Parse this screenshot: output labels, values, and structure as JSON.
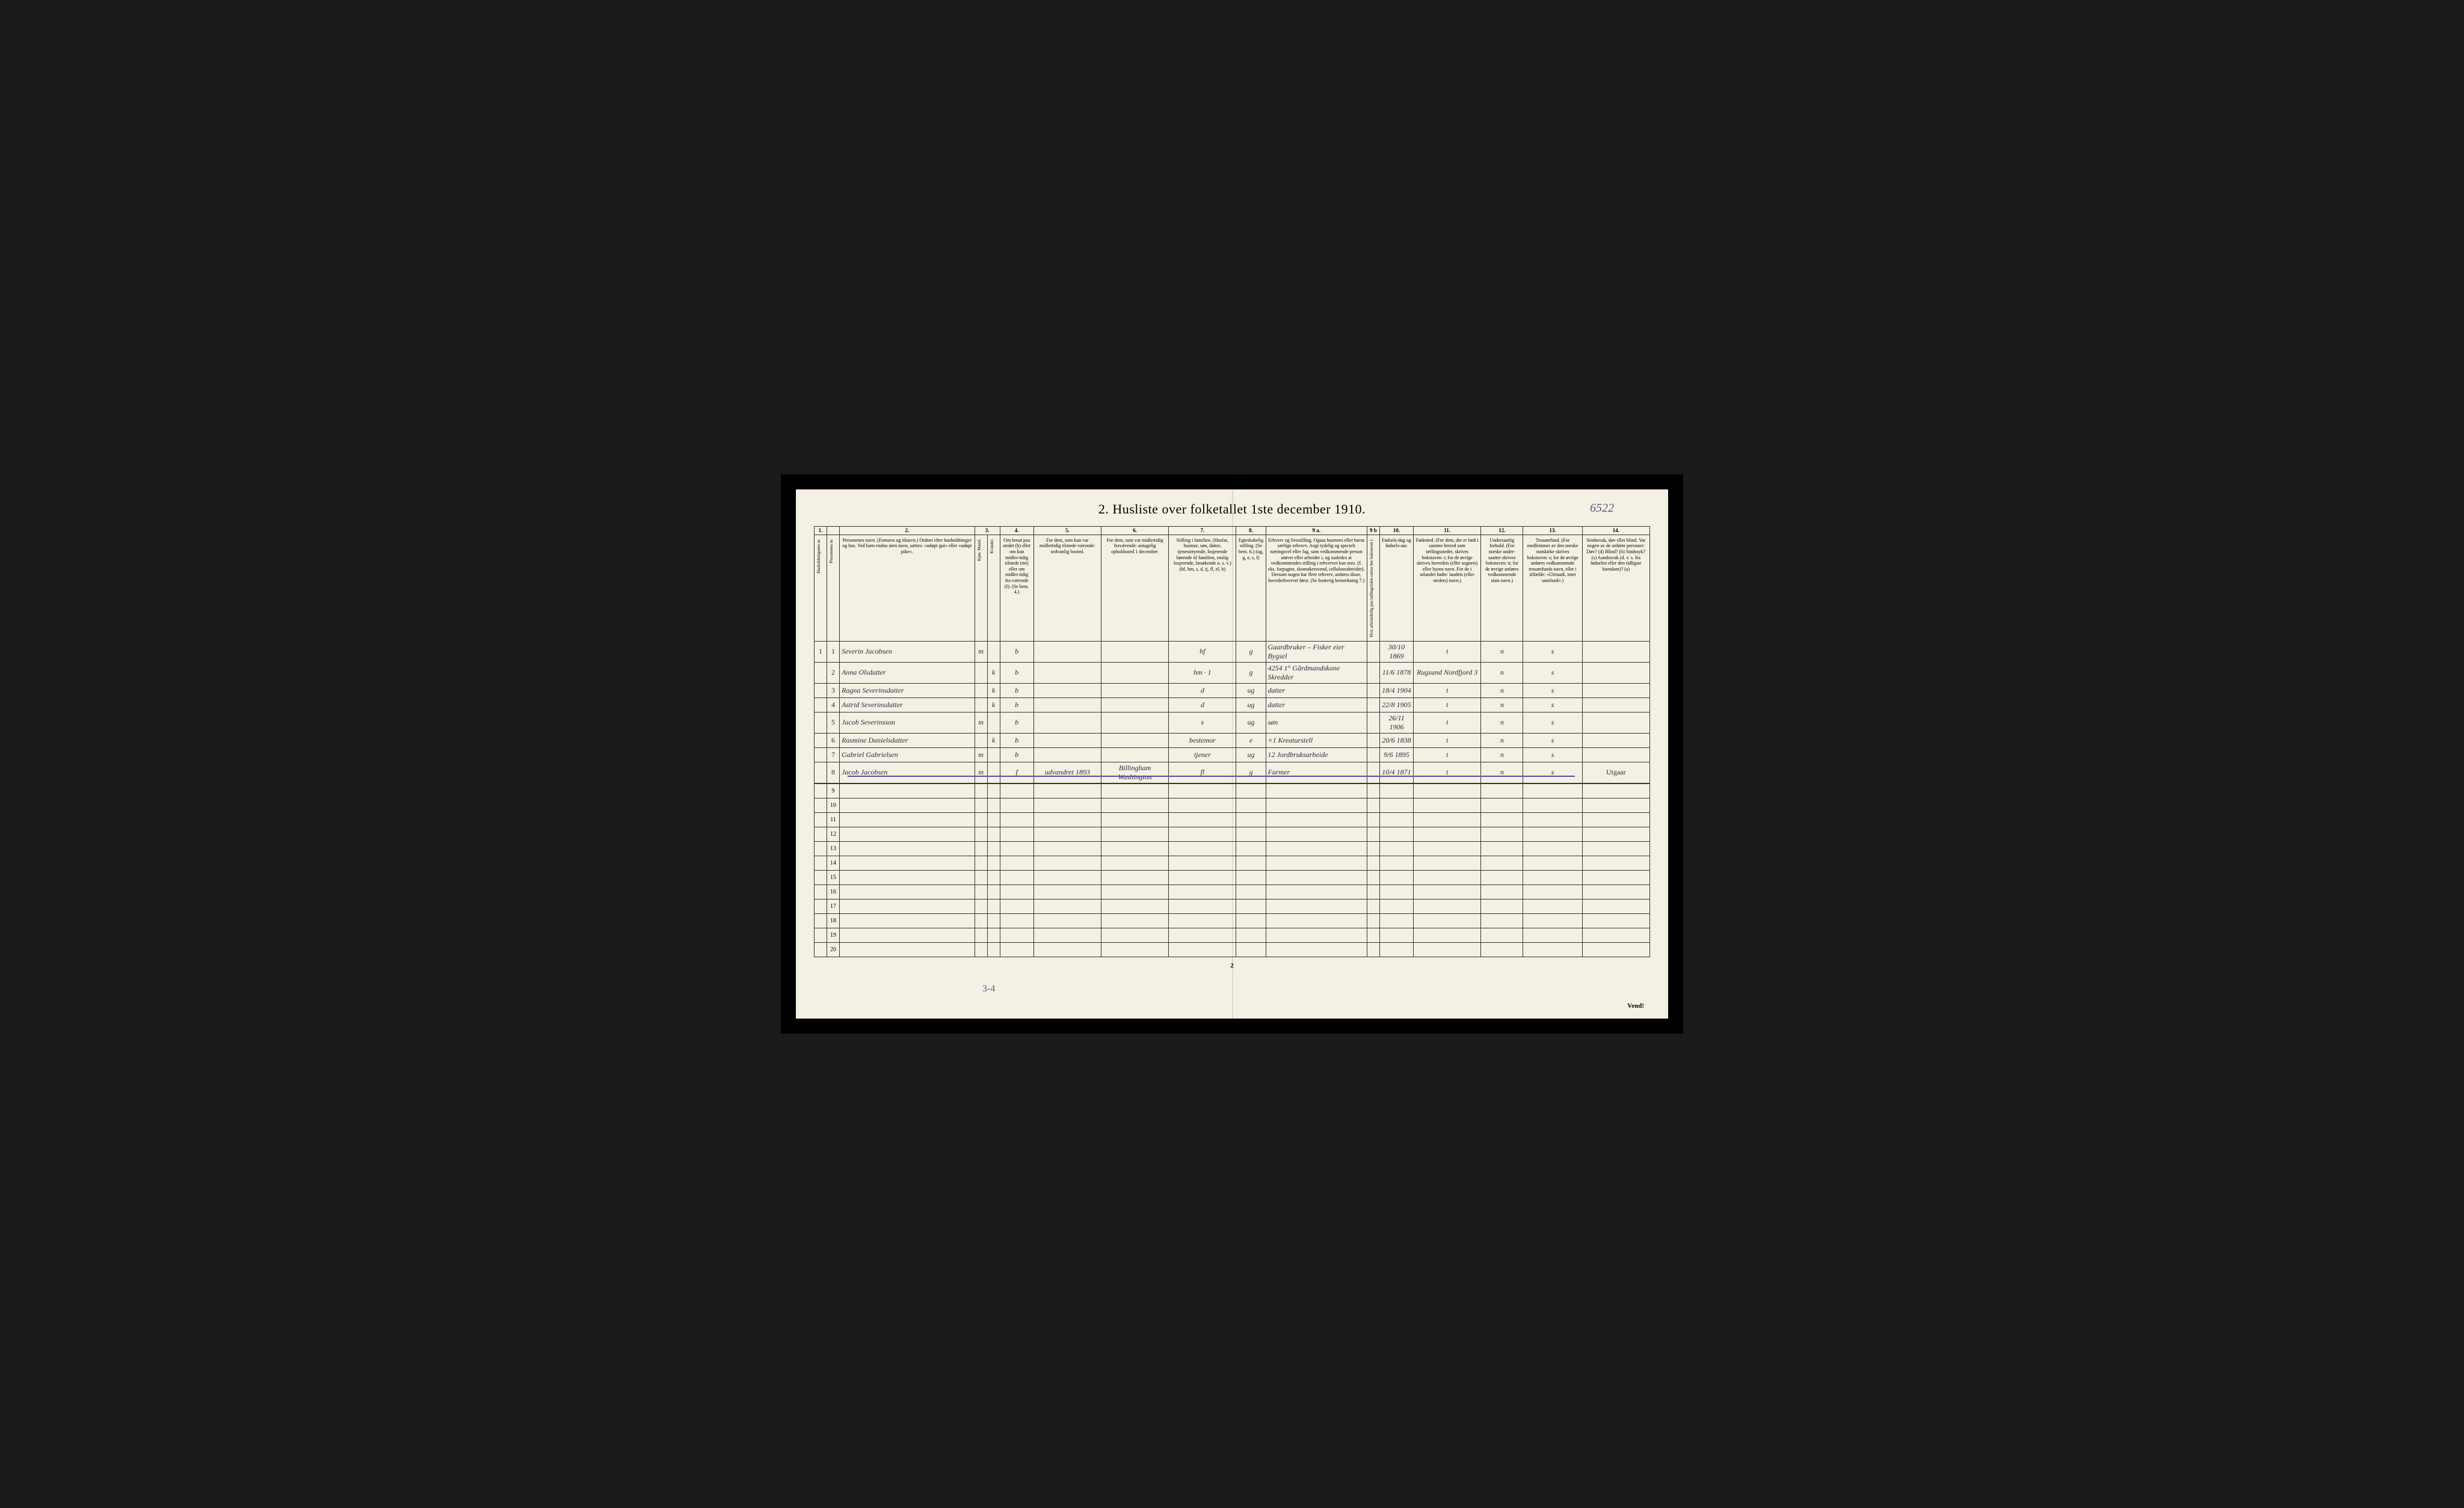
{
  "title": "2. Husliste over folketallet 1ste december 1910.",
  "title_annotation": "6522",
  "page_number_bottom": "2",
  "bottom_annotation": "3-4",
  "vend_text": "Vend!",
  "column_numbers": [
    "1.",
    "",
    "2.",
    "3.",
    "",
    "4.",
    "5.",
    "6.",
    "7.",
    "8.",
    "9 a.",
    "9 b",
    "10.",
    "11.",
    "12.",
    "13.",
    "14."
  ],
  "headers": {
    "col1": "Husholdningenes nr.",
    "col1b": "Personenes nr.",
    "col2": "Personenes navn.\n(Fornavn og tilnavn.)\nOrdnet efter husholdninger og hus.\nVed barn endnu uten navn, sættes: «udøpt gut» eller «udøpt pike».",
    "col3": "Kjøn.\nMænd.",
    "col3b": "Kvinder.",
    "col3_sub": "m. k.",
    "col4": "Om bosat paa stedet (b) eller om kun midler-tidig tilstede (mt) eller om midler-tidig fra-værende (f).\n(Se bem. 4.)",
    "col5": "For dem, som kun var midlertidig tilstede-værende:\nsedvanlig bosted.",
    "col6": "For dem, som var midlertidig fraværende:\nantagelig opholdssted 1 december.",
    "col7": "Stilling i familien.\n(Husfar, husmor, søn, datter, tjenestetyende, losjerende hørende til familien, enslig losjerende, besøkende o. s. v.)\n(hf, hm, s, d, tj, fl, el, b)",
    "col8": "Egteskabelig stilling.\n(Se bem. 6.)\n(ug, g, e, s, f)",
    "col9a": "Erhverv og livsstilling.\nOgsaa husmors eller barns særlige erhverv.\nAngi tydelig og specielt næringsvel eller fag, som vedkommende person utøver eller arbeider i, og saaledes at vedkommendes stilling i erhvervet kan sees. (f. eks. forpagter, skomakersvend, celluloseabreider). Dersom nogen har flere erhverv, anføres disse, hovederhvervet først.\n(Se forøvrig bemerkning 7.)",
    "col9b": "Hvis arbeidsledig paa tællingstiden sættes her bokstaven l.",
    "col10": "Fødsels-dag og fødsels-aar.",
    "col11": "Fødested.\n(For dem, der er født i samme herred som tællingsstedet, skrives bokstaven: t; for de øvrige skrives herredets (eller sognets) eller byens navn.\nFor de i utlandet fødte: landets (eller stedets) navn.)",
    "col12": "Undersaatlig forhold.\n(For norske under-saatter skrives bokstaven: n; for de øvrige anføres vedkommende stats navn.)",
    "col13": "Trosamfund.\n(For medlemmer av den norske statskirke skrives bokstaven: s; for de øvrige anføres vedkommende trosamfunds navn, eller i tilfælde: «Uttraadt, intet samfund».)",
    "col14": "Sindssvak, døv eller blind.\nVar nogen av de anførte personer:\nDøv? (d)\nBlind? (b)\nSindssyk? (s)\nAandssvak (d. v. s. fra fødselen eller den tidligste barndom)? (a)"
  },
  "rows": [
    {
      "hnum": "1",
      "pnum": "1",
      "navn": "Severin Jacobsen",
      "m": "m",
      "k": "",
      "bosat": "b",
      "col5": "",
      "col6": "",
      "stilling": "hf",
      "egte": "g",
      "erhverv": "Gaardbruker – Fisker eier Bygsel",
      "col9b": "",
      "fodsel": "30/10 1869",
      "fodested": "t",
      "unders": "n",
      "tros": "s",
      "col14": ""
    },
    {
      "hnum": "",
      "pnum": "2",
      "navn": "Anna Olsdatter",
      "m": "",
      "k": "k",
      "bosat": "b",
      "col5": "",
      "col6": "",
      "stilling": "hm · 1",
      "egte": "g",
      "erhverv": "4254 1° Gårdmandskone Skredder",
      "col9b": "",
      "fodsel": "11/6 1878",
      "fodested": "Rugsund Nordfjord",
      "fodested_note": "3",
      "unders": "n",
      "tros": "s",
      "col14": ""
    },
    {
      "hnum": "",
      "pnum": "3",
      "navn": "Ragna Severinsdatter",
      "m": "",
      "k": "k",
      "bosat": "b",
      "col5": "",
      "col6": "",
      "stilling": "d",
      "egte": "ug",
      "erhverv": "datter",
      "col9b": "",
      "fodsel": "18/4 1904",
      "fodested": "t",
      "unders": "n",
      "tros": "s",
      "col14": ""
    },
    {
      "hnum": "",
      "pnum": "4",
      "navn": "Astrid Severinsdatter",
      "m": "",
      "k": "k",
      "bosat": "b",
      "col5": "",
      "col6": "",
      "stilling": "d",
      "egte": "ug",
      "erhverv": "datter",
      "col9b": "",
      "fodsel": "22/8 1905",
      "fodested": "t",
      "unders": "n",
      "tros": "s",
      "col14": ""
    },
    {
      "hnum": "",
      "pnum": "5",
      "navn": "Jacob Severinsson",
      "m": "m",
      "k": "",
      "bosat": "b",
      "col5": "",
      "col6": "",
      "stilling": "s",
      "egte": "ug",
      "erhverv": "søn",
      "col9b": "",
      "fodsel": "26/11 1906",
      "fodested": "t",
      "unders": "n",
      "tros": "s",
      "col14": ""
    },
    {
      "hnum": "",
      "pnum": "6",
      "navn": "Rasmine Danielsdatter",
      "m": "",
      "k": "k",
      "bosat": "b",
      "col5": "",
      "col6": "",
      "stilling": "bestemor",
      "egte": "e",
      "erhverv": "×1 Kreaturstell",
      "col9b": "",
      "fodsel": "20/6 1838",
      "fodested": "t",
      "unders": "n",
      "tros": "s",
      "col14": ""
    },
    {
      "hnum": "",
      "pnum": "7",
      "navn": "Gabriel Gabrielsen",
      "m": "m",
      "k": "",
      "bosat": "b",
      "col5": "",
      "col6": "",
      "stilling": "tjener",
      "egte": "ug",
      "erhverv": "12 Jordbruksarbeide",
      "col9b": "",
      "fodsel": "9/6 1895",
      "fodested": "t",
      "unders": "n",
      "tros": "s",
      "col14": ""
    },
    {
      "hnum": "",
      "pnum": "8",
      "navn": "Jacob Jacobsen",
      "m": "m",
      "k": "",
      "bosat": "f",
      "col5": "udvandret 1893",
      "col6": "Billingham Washington",
      "stilling": "fl",
      "egte": "g",
      "erhverv": "Farmer",
      "col9b": "",
      "fodsel": "10/4 1871",
      "fodested": "t",
      "unders": "n",
      "tros": "s",
      "col14": "Utgaar",
      "struck": true
    }
  ],
  "empty_rows": [
    "9",
    "10",
    "11",
    "12",
    "13",
    "14",
    "15",
    "16",
    "17",
    "18",
    "19",
    "20"
  ]
}
